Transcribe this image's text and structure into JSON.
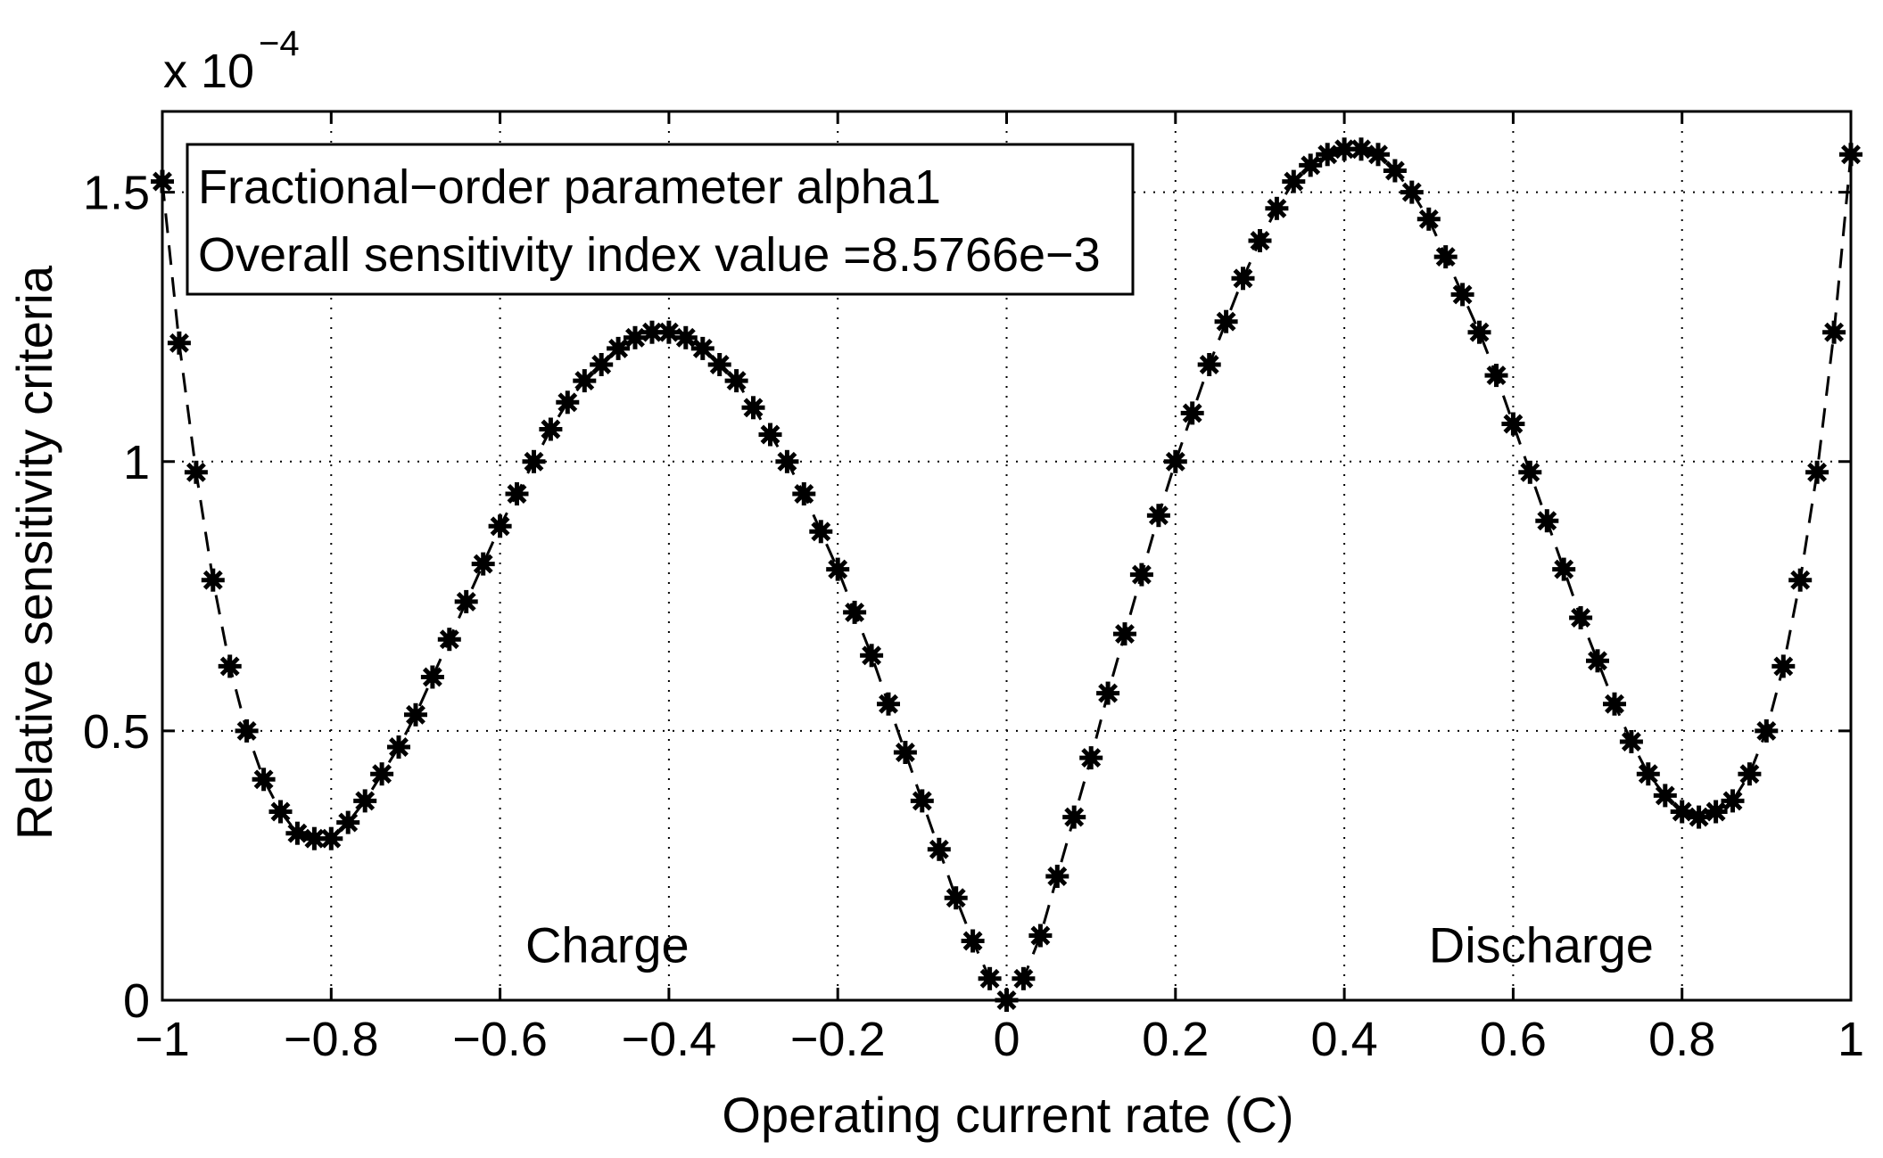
{
  "chart_data": {
    "type": "line",
    "title": "",
    "xlabel": "Operating current rate (C)",
    "ylabel": "Relative sensitivity criteria",
    "y_exponent": {
      "base": "x 10",
      "power": "−4"
    },
    "xlim": [
      -1,
      1
    ],
    "ylim": [
      0,
      1.65
    ],
    "xticks": [
      -1,
      -0.8,
      -0.6,
      -0.4,
      -0.2,
      0,
      0.2,
      0.4,
      0.6,
      0.8,
      1
    ],
    "xtick_labels": [
      "−1",
      "−0.8",
      "−0.6",
      "−0.4",
      "−0.2",
      "0",
      "0.2",
      "0.4",
      "0.6",
      "0.8",
      "1"
    ],
    "yticks": [
      0,
      0.5,
      1,
      1.5
    ],
    "ytick_labels": [
      "0",
      "0.5",
      "1",
      "1.5"
    ],
    "grid": true,
    "grid_style": "dotted",
    "legend_position": "top-left",
    "legend_lines": [
      "Fractional−order parameter alpha1",
      "Overall sensitivity index value =8.5766e−3"
    ],
    "annotations": [
      {
        "text": "Charge",
        "x": -0.57,
        "y": 0.07
      },
      {
        "text": "Discharge",
        "x": 0.5,
        "y": 0.07
      }
    ],
    "line_color": "#000000",
    "line_style": "dashed",
    "marker": "asterisk",
    "series": [
      {
        "x": [
          -1.0,
          -0.98,
          -0.96,
          -0.94,
          -0.92,
          -0.9,
          -0.88,
          -0.86,
          -0.84,
          -0.82,
          -0.8,
          -0.78,
          -0.76,
          -0.74,
          -0.72,
          -0.7,
          -0.68,
          -0.66,
          -0.64,
          -0.62,
          -0.6,
          -0.58,
          -0.56,
          -0.54,
          -0.52,
          -0.5,
          -0.48,
          -0.46,
          -0.44,
          -0.42,
          -0.4,
          -0.38,
          -0.36,
          -0.34,
          -0.32,
          -0.3,
          -0.28,
          -0.26,
          -0.24,
          -0.22,
          -0.2,
          -0.18,
          -0.16,
          -0.14,
          -0.12,
          -0.1,
          -0.08,
          -0.06,
          -0.04,
          -0.02,
          0.0,
          0.02,
          0.04,
          0.06,
          0.08,
          0.1,
          0.12,
          0.14,
          0.16,
          0.18,
          0.2,
          0.22,
          0.24,
          0.26,
          0.28,
          0.3,
          0.32,
          0.34,
          0.36,
          0.38,
          0.4,
          0.42,
          0.44,
          0.46,
          0.48,
          0.5,
          0.52,
          0.54,
          0.56,
          0.58,
          0.6,
          0.62,
          0.64,
          0.66,
          0.68,
          0.7,
          0.72,
          0.74,
          0.76,
          0.78,
          0.8,
          0.82,
          0.84,
          0.86,
          0.88,
          0.9,
          0.92,
          0.94,
          0.96,
          0.98,
          1.0
        ],
        "y": [
          1.52,
          1.22,
          0.98,
          0.78,
          0.62,
          0.5,
          0.41,
          0.35,
          0.31,
          0.3,
          0.3,
          0.33,
          0.37,
          0.42,
          0.47,
          0.53,
          0.6,
          0.67,
          0.74,
          0.81,
          0.88,
          0.94,
          1.0,
          1.06,
          1.11,
          1.15,
          1.18,
          1.21,
          1.23,
          1.24,
          1.24,
          1.23,
          1.21,
          1.18,
          1.15,
          1.1,
          1.05,
          1.0,
          0.94,
          0.87,
          0.8,
          0.72,
          0.64,
          0.55,
          0.46,
          0.37,
          0.28,
          0.19,
          0.11,
          0.04,
          0.0,
          0.04,
          0.12,
          0.23,
          0.34,
          0.45,
          0.57,
          0.68,
          0.79,
          0.9,
          1.0,
          1.09,
          1.18,
          1.26,
          1.34,
          1.41,
          1.47,
          1.52,
          1.55,
          1.57,
          1.58,
          1.58,
          1.57,
          1.54,
          1.5,
          1.45,
          1.38,
          1.31,
          1.24,
          1.16,
          1.07,
          0.98,
          0.89,
          0.8,
          0.71,
          0.63,
          0.55,
          0.48,
          0.42,
          0.38,
          0.35,
          0.34,
          0.35,
          0.37,
          0.42,
          0.5,
          0.62,
          0.78,
          0.98,
          1.24,
          1.57
        ]
      }
    ]
  }
}
